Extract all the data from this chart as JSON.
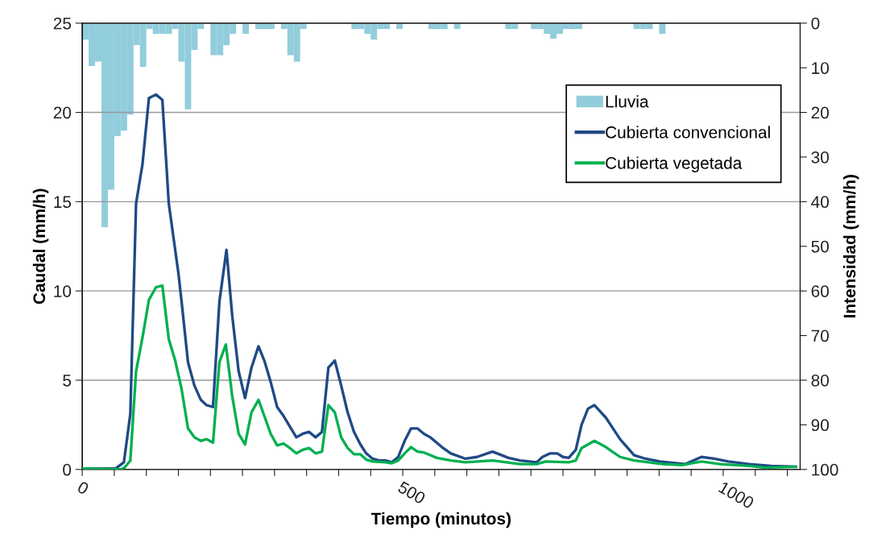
{
  "chart_data": {
    "type": "line",
    "xlabel": "Tiempo (minutos)",
    "ylabel": "Caudal (mm/h)",
    "y2label": "Intensidad (mm/h)",
    "xlim": [
      0,
      1120
    ],
    "xticks": [
      0,
      {
        "value": 50,
        "label": null
      },
      {
        "value": 100,
        "label": null
      },
      {
        "value": 150,
        "label": null
      },
      {
        "value": 200,
        "label": null
      },
      {
        "value": 250,
        "label": null
      },
      {
        "value": 300,
        "label": null
      },
      {
        "value": 350,
        "label": null
      },
      {
        "value": 400,
        "label": null
      },
      {
        "value": 450,
        "label": null
      },
      500,
      {
        "value": 550,
        "label": null
      },
      {
        "value": 600,
        "label": null
      },
      {
        "value": 650,
        "label": null
      },
      {
        "value": 700,
        "label": null
      },
      {
        "value": 750,
        "label": null
      },
      {
        "value": 800,
        "label": null
      },
      {
        "value": 850,
        "label": null
      },
      {
        "value": 900,
        "label": null
      },
      {
        "value": 950,
        "label": null
      },
      1000,
      {
        "value": 1050,
        "label": null
      },
      {
        "value": 1100,
        "label": null
      }
    ],
    "ylim": [
      0,
      25
    ],
    "yticks": [
      0,
      5,
      10,
      15,
      20,
      25
    ],
    "y2lim": [
      100,
      0
    ],
    "y2ticks": [
      0,
      10,
      20,
      30,
      40,
      50,
      60,
      70,
      80,
      90,
      100
    ],
    "grid": "y",
    "legend": "top right",
    "line_style": "solid",
    "marker": "none",
    "series": [
      {
        "name": "Lluvia",
        "type": "bar",
        "axis": "y2",
        "color": "#92cddc",
        "x": [
          5,
          15,
          25,
          35,
          45,
          55,
          65,
          75,
          85,
          95,
          105,
          115,
          125,
          135,
          145,
          155,
          165,
          175,
          185,
          205,
          215,
          225,
          235,
          255,
          275,
          285,
          295,
          315,
          325,
          335,
          345,
          425,
          435,
          445,
          455,
          465,
          475,
          495,
          545,
          555,
          565,
          585,
          665,
          675,
          705,
          715,
          725,
          735,
          745,
          755,
          765,
          775,
          865,
          875,
          885,
          905
        ],
        "values": [
          3.7,
          9.6,
          8.6,
          45.7,
          37.3,
          25.3,
          24.1,
          20.5,
          4.9,
          9.8,
          1.3,
          2.4,
          2.4,
          2.4,
          1.3,
          8.6,
          19.3,
          6.0,
          1.3,
          7.2,
          7.2,
          4.9,
          2.4,
          2.4,
          1.3,
          1.3,
          1.3,
          1.3,
          7.2,
          8.6,
          1.3,
          1.3,
          1.3,
          2.4,
          3.7,
          1.3,
          1.3,
          1.3,
          1.3,
          1.3,
          1.3,
          1.3,
          1.3,
          1.3,
          1.3,
          1.3,
          2.4,
          3.5,
          2.4,
          1.3,
          1.3,
          1.3,
          1.3,
          1.3,
          1.3,
          2.4
        ]
      },
      {
        "name": "Cubierta convencional",
        "color": "#1f4a85",
        "x": [
          0,
          52,
          65,
          75,
          84,
          94,
          104,
          115,
          125,
          135,
          150,
          155,
          165,
          175,
          185,
          194,
          204,
          214,
          225,
          234,
          244,
          254,
          264,
          275,
          284,
          294,
          304,
          314,
          324,
          334,
          344,
          354,
          364,
          374,
          384,
          394,
          404,
          414,
          424,
          434,
          443,
          453,
          463,
          473,
          483,
          493,
          503,
          513,
          523,
          533,
          543,
          553,
          563,
          575,
          598,
          616,
          640,
          665,
          683,
          709,
          718,
          730,
          741,
          750,
          759,
          770,
          779,
          789,
          799,
          817,
          839,
          861,
          879,
          901,
          941,
          966,
          986,
          1008,
          1040,
          1075,
          1113
        ],
        "values": [
          0.05,
          0.05,
          0.4,
          3.1,
          14.9,
          17.1,
          20.8,
          21.0,
          20.7,
          14.9,
          11.0,
          9.4,
          6.0,
          4.7,
          3.9,
          3.6,
          3.5,
          9.4,
          12.3,
          8.6,
          5.5,
          4.0,
          5.7,
          6.9,
          6.1,
          4.9,
          3.5,
          3.0,
          2.4,
          1.8,
          2.0,
          2.1,
          1.8,
          2.1,
          5.7,
          6.1,
          4.7,
          3.2,
          2.1,
          1.4,
          0.9,
          0.6,
          0.5,
          0.5,
          0.4,
          0.7,
          1.6,
          2.3,
          2.3,
          2.0,
          1.8,
          1.5,
          1.2,
          0.9,
          0.6,
          0.7,
          1.0,
          0.65,
          0.5,
          0.4,
          0.7,
          0.9,
          0.9,
          0.7,
          0.65,
          1.1,
          2.5,
          3.4,
          3.6,
          2.9,
          1.7,
          0.8,
          0.6,
          0.45,
          0.3,
          0.7,
          0.6,
          0.45,
          0.3,
          0.2,
          0.15
        ]
      },
      {
        "name": "Cubierta vegetada",
        "color": "#00b050",
        "x": [
          0,
          60,
          66,
          75,
          84,
          95,
          104,
          115,
          125,
          135,
          145,
          155,
          165,
          175,
          185,
          194,
          204,
          214,
          224,
          234,
          244,
          254,
          264,
          275,
          284,
          294,
          304,
          314,
          324,
          334,
          344,
          354,
          364,
          374,
          384,
          394,
          404,
          414,
          424,
          434,
          443,
          453,
          473,
          483,
          493,
          503,
          513,
          523,
          533,
          543,
          553,
          575,
          598,
          640,
          683,
          709,
          723,
          759,
          770,
          779,
          799,
          817,
          839,
          861,
          906,
          937,
          966,
          995,
          1040,
          1066,
          1113
        ],
        "values": [
          0.05,
          0.0,
          0.1,
          0.5,
          5.5,
          7.6,
          9.5,
          10.2,
          10.3,
          7.3,
          6.1,
          4.5,
          2.3,
          1.8,
          1.6,
          1.7,
          1.5,
          6.0,
          7.0,
          4.1,
          2.0,
          1.4,
          3.2,
          3.9,
          3.0,
          2.0,
          1.35,
          1.45,
          1.2,
          0.9,
          1.1,
          1.2,
          0.9,
          1.0,
          3.6,
          3.2,
          1.8,
          1.2,
          0.85,
          0.85,
          0.55,
          0.45,
          0.4,
          0.35,
          0.5,
          0.9,
          1.25,
          1.0,
          0.95,
          0.8,
          0.65,
          0.5,
          0.4,
          0.5,
          0.3,
          0.3,
          0.45,
          0.4,
          0.5,
          1.2,
          1.6,
          1.25,
          0.7,
          0.5,
          0.3,
          0.25,
          0.45,
          0.3,
          0.2,
          0.1,
          0.15
        ]
      }
    ]
  }
}
